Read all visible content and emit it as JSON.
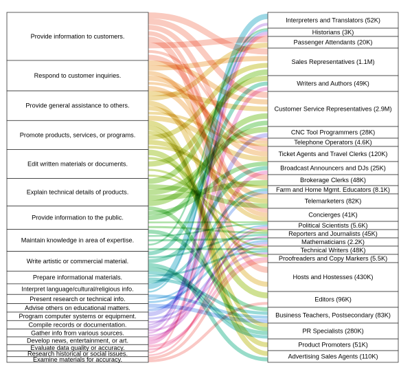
{
  "chart_data": {
    "type": "sankey",
    "title": "",
    "left_nodes": [
      "Provide information to customers.",
      "Respond to customer inquiries.",
      "Provide general assistance to others.",
      "Promote products, services, or programs.",
      "Edit written materials or documents.",
      "Explain technical details of products.",
      "Provide information to the public.",
      "Maintain knowledge in area of expertise.",
      "Write artistic or commercial material.",
      "Prepare informational materials.",
      "Interpret language/cultural/religious info.",
      "Present research or technical info.",
      "Advise others on educational matters.",
      "Program computer systems or equipment.",
      "Compile records or documentation.",
      "Gather info from various sources.",
      "Develop news, entertainment, or art.",
      "Evaluate data quality or accuracy.",
      "Research historical or social issues.",
      "Examine materials for accuracy."
    ],
    "right_nodes": [
      "Interpreters and Translators (52K)",
      "Historians (3K)",
      "Passenger Attendants (20K)",
      "Sales Representatives (1.1M)",
      "Writers and Authors (49K)",
      "Customer Service Representatives (2.9M)",
      "CNC Tool Programmers (28K)",
      "Telephone Operators (4.6K)",
      "Ticket Agents and Travel Clerks (120K)",
      "Broadcast Announcers and DJs (25K)",
      "Brokerage Clerks (48K)",
      "Farm and Home Mgmt. Educators (8.1K)",
      "Telemarketers (82K)",
      "Concierges (41K)",
      "Political Scientists (5.6K)",
      "Reporters and Journalists (45K)",
      "Mathematicians (2.2K)",
      "Technical Writers (48K)",
      "Proofreaders and Copy Markers (5.5K)",
      "Hosts and Hostesses (430K)",
      "Editors (96K)",
      "Business Teachers, Postsecondary (83K)",
      "PR Specialists (280K)",
      "Product Promoters (51K)",
      "Advertising Sales Agents (110K)"
    ],
    "left_weights": [
      68,
      43,
      42,
      41,
      41,
      39,
      33,
      31,
      28,
      18,
      15,
      13,
      12,
      12,
      12,
      11,
      11,
      9,
      8,
      8
    ],
    "right_weights": [
      23,
      12,
      17,
      40,
      23,
      51,
      17,
      12,
      22,
      19,
      16,
      12,
      21,
      19,
      12,
      12,
      12,
      12,
      12,
      42,
      23,
      23,
      23,
      17,
      17
    ],
    "links": [
      [
        0,
        3
      ],
      [
        0,
        5
      ],
      [
        0,
        8
      ],
      [
        0,
        13
      ],
      [
        0,
        19
      ],
      [
        0,
        2
      ],
      [
        0,
        7
      ],
      [
        0,
        10
      ],
      [
        1,
        5
      ],
      [
        1,
        3
      ],
      [
        1,
        13
      ],
      [
        1,
        8
      ],
      [
        1,
        7
      ],
      [
        1,
        12
      ],
      [
        2,
        5
      ],
      [
        2,
        2
      ],
      [
        2,
        19
      ],
      [
        2,
        13
      ],
      [
        2,
        7
      ],
      [
        2,
        8
      ],
      [
        3,
        23
      ],
      [
        3,
        24
      ],
      [
        3,
        22
      ],
      [
        3,
        3
      ],
      [
        3,
        12
      ],
      [
        3,
        11
      ],
      [
        4,
        20
      ],
      [
        4,
        18
      ],
      [
        4,
        4
      ],
      [
        4,
        17
      ],
      [
        4,
        15
      ],
      [
        5,
        3
      ],
      [
        5,
        12
      ],
      [
        5,
        6
      ],
      [
        5,
        10
      ],
      [
        5,
        5
      ],
      [
        6,
        22
      ],
      [
        6,
        9
      ],
      [
        6,
        5
      ],
      [
        6,
        14
      ],
      [
        6,
        15
      ],
      [
        7,
        21
      ],
      [
        7,
        14
      ],
      [
        7,
        16
      ],
      [
        7,
        1
      ],
      [
        7,
        17
      ],
      [
        8,
        4
      ],
      [
        8,
        15
      ],
      [
        8,
        9
      ],
      [
        8,
        24
      ],
      [
        8,
        22
      ],
      [
        9,
        22
      ],
      [
        9,
        17
      ],
      [
        9,
        21
      ],
      [
        9,
        11
      ],
      [
        10,
        0
      ],
      [
        10,
        1
      ],
      [
        11,
        21
      ],
      [
        11,
        14
      ],
      [
        11,
        16
      ],
      [
        12,
        21
      ],
      [
        12,
        11
      ],
      [
        13,
        6
      ],
      [
        13,
        16
      ],
      [
        14,
        17
      ],
      [
        14,
        1
      ],
      [
        14,
        0
      ],
      [
        15,
        15
      ],
      [
        15,
        1
      ],
      [
        15,
        14
      ],
      [
        16,
        9
      ],
      [
        16,
        4
      ],
      [
        17,
        18
      ],
      [
        17,
        16
      ],
      [
        18,
        1
      ],
      [
        18,
        14
      ],
      [
        19,
        18
      ],
      [
        19,
        20
      ]
    ],
    "colors": [
      "#f6a08c",
      "#f0b46a",
      "#e3c055",
      "#c7c53d",
      "#a8c83a",
      "#86c943",
      "#66c65a",
      "#4fc27c",
      "#44bf9c",
      "#44bcb8",
      "#4cb8cf",
      "#5fb2e4",
      "#7fa9f0",
      "#a09df0",
      "#bf93e8",
      "#d88cdc",
      "#eb89c9",
      "#f48db5",
      "#f794a2",
      "#f69a95"
    ]
  }
}
